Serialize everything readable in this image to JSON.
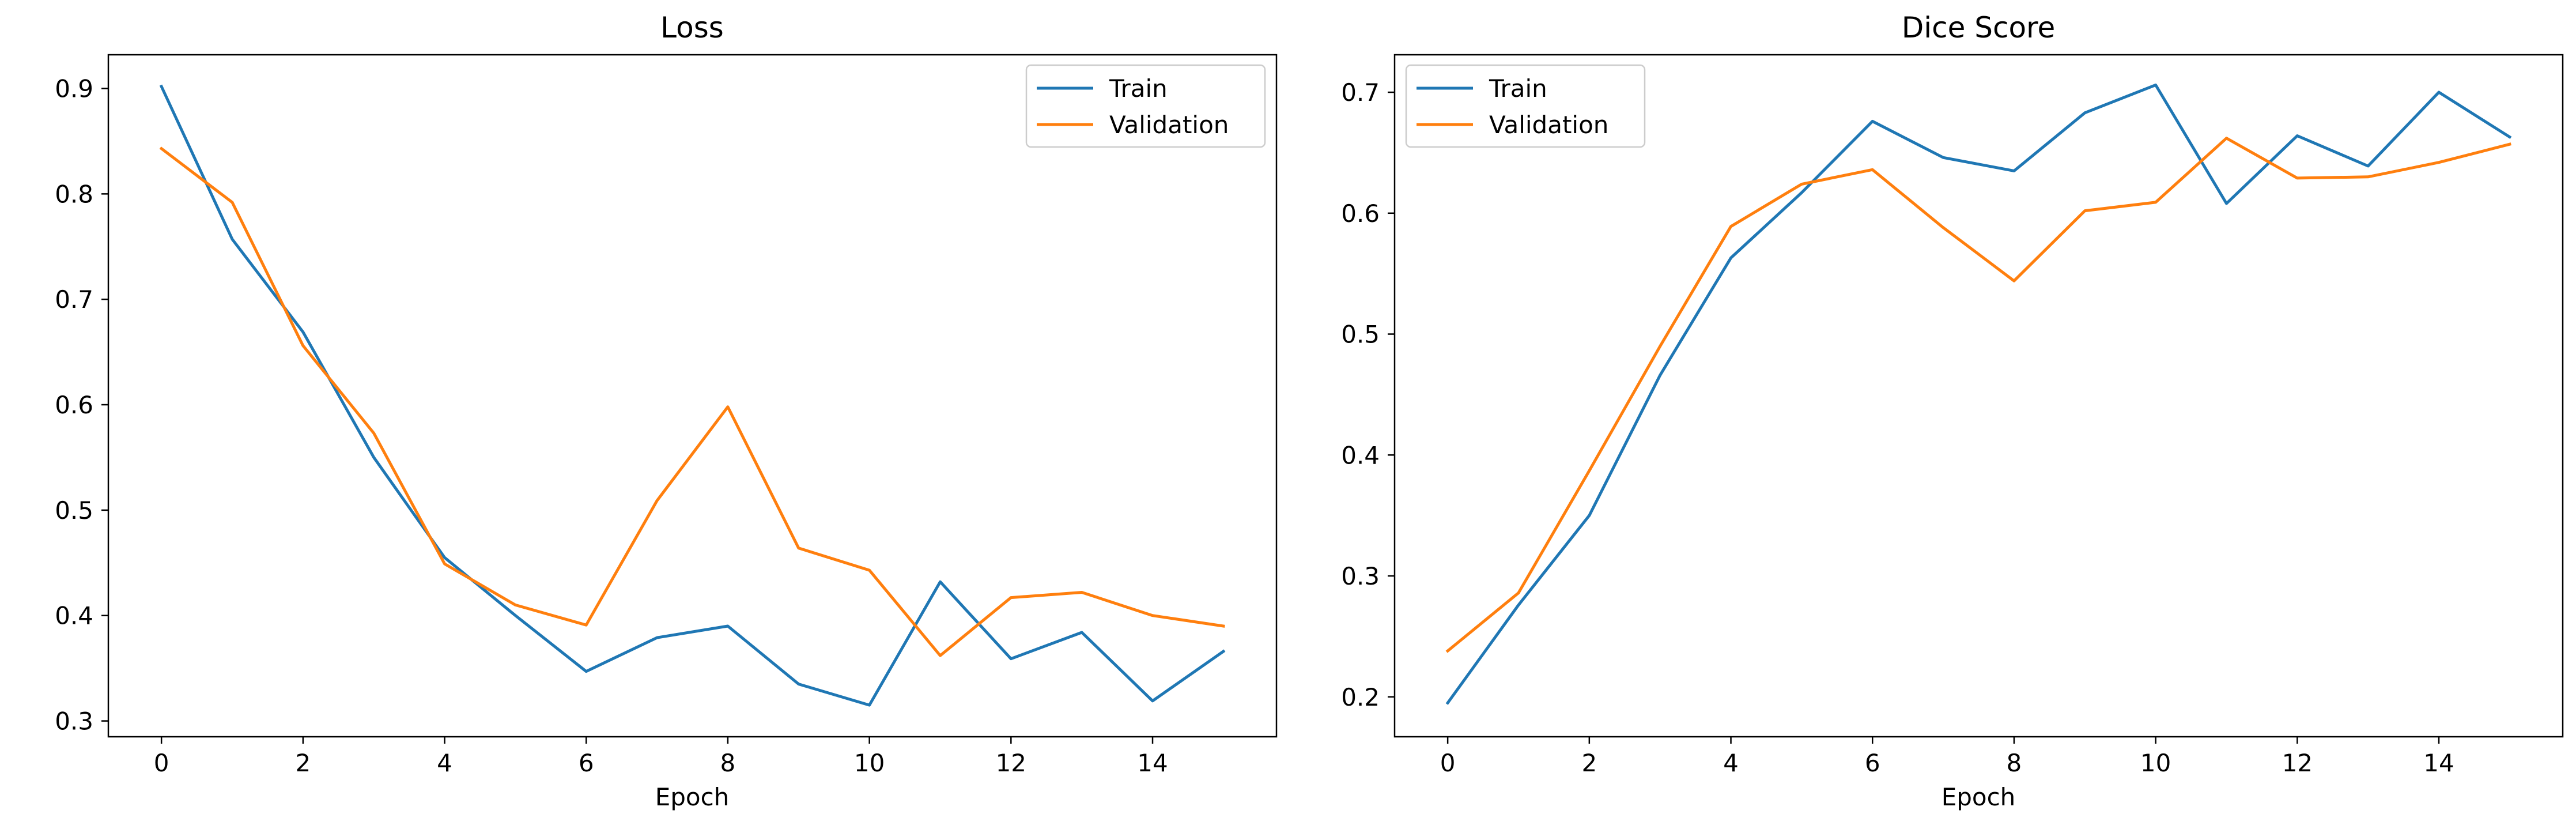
{
  "chart_data": [
    {
      "type": "line",
      "title": "Loss",
      "xlabel": "Epoch",
      "ylabel": "",
      "x": [
        0,
        1,
        2,
        3,
        4,
        5,
        6,
        7,
        8,
        9,
        10,
        11,
        12,
        13,
        14,
        15
      ],
      "xlim": [
        -0.75,
        15.75
      ],
      "ylim": [
        0.285,
        0.932
      ],
      "xticks": [
        0,
        2,
        4,
        6,
        8,
        10,
        12,
        14
      ],
      "yticks": [
        0.3,
        0.4,
        0.5,
        0.6,
        0.7,
        0.8,
        0.9
      ],
      "grid": false,
      "legend_position": "top-right",
      "series": [
        {
          "name": "Train",
          "color": "#1f77b4",
          "values": [
            0.902,
            0.757,
            0.669,
            0.55,
            0.455,
            0.4,
            0.347,
            0.379,
            0.39,
            0.335,
            0.315,
            0.432,
            0.359,
            0.384,
            0.319,
            0.366
          ]
        },
        {
          "name": "Validation",
          "color": "#ff7f0e",
          "values": [
            0.843,
            0.792,
            0.656,
            0.573,
            0.449,
            0.41,
            0.391,
            0.509,
            0.598,
            0.464,
            0.443,
            0.362,
            0.417,
            0.422,
            0.4,
            0.39
          ]
        }
      ]
    },
    {
      "type": "line",
      "title": "Dice Score",
      "xlabel": "Epoch",
      "ylabel": "",
      "x": [
        0,
        1,
        2,
        3,
        4,
        5,
        6,
        7,
        8,
        9,
        10,
        11,
        12,
        13,
        14,
        15
      ],
      "xlim": [
        -0.75,
        15.75
      ],
      "ylim": [
        0.167,
        0.731
      ],
      "xticks": [
        0,
        2,
        4,
        6,
        8,
        10,
        12,
        14
      ],
      "yticks": [
        0.2,
        0.3,
        0.4,
        0.5,
        0.6,
        0.7
      ],
      "grid": false,
      "legend_position": "top-left",
      "series": [
        {
          "name": "Train",
          "color": "#1f77b4",
          "values": [
            0.195,
            0.276,
            0.35,
            0.466,
            0.563,
            0.617,
            0.676,
            0.646,
            0.635,
            0.683,
            0.706,
            0.608,
            0.664,
            0.639,
            0.7,
            0.663
          ]
        },
        {
          "name": "Validation",
          "color": "#ff7f0e",
          "values": [
            0.238,
            0.286,
            0.387,
            0.49,
            0.589,
            0.624,
            0.636,
            0.588,
            0.544,
            0.602,
            0.609,
            0.662,
            0.629,
            0.63,
            0.642,
            0.657
          ]
        }
      ]
    }
  ]
}
